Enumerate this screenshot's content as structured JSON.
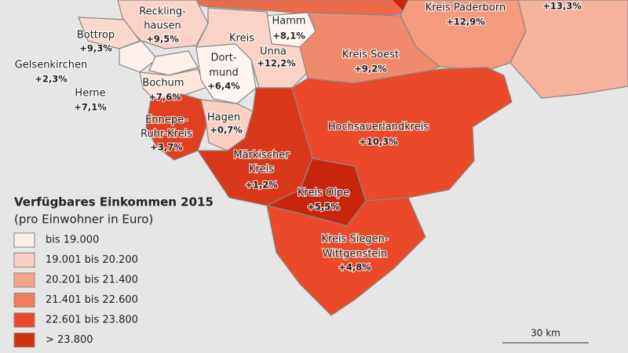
{
  "legend": {
    "title": "Verfügbares Einkommen 2015",
    "subtitle": "(pro Einwohner in Euro)",
    "classes": [
      {
        "label": "bis 19.000",
        "color": "#fdeeea"
      },
      {
        "label": "19.001 bis 20.200",
        "color": "#fbcfc2"
      },
      {
        "label": "20.201 bis 21.400",
        "color": "#f6a58c"
      },
      {
        "label": "21.401 bis 22.600",
        "color": "#f07c5e"
      },
      {
        "label": "22.601 bis 23.800",
        "color": "#ea4a2a"
      },
      {
        "label": "> 23.800",
        "color": "#d1300f"
      }
    ]
  },
  "regions": [
    {
      "lines": [
        "Kreis Paderborn"
      ],
      "change": "+12,9%",
      "color": "#f49a7e"
    },
    {
      "lines": [],
      "change": "+13,3%",
      "color": "#f7b29c"
    },
    {
      "lines": [
        "Reckling-",
        "hausen"
      ],
      "change": "+9,5%",
      "color": "#fbd3c6"
    },
    {
      "lines": [
        "Bottrop"
      ],
      "change": "+9,3%",
      "color": "#fbd8cc"
    },
    {
      "lines": [
        "Gelsenkirchen"
      ],
      "change": "+2,3%",
      "color": "#fef2ee"
    },
    {
      "lines": [
        "Herne"
      ],
      "change": "+7,1%",
      "color": "#fdefea"
    },
    {
      "lines": [
        "Bochum"
      ],
      "change": "+7,6%",
      "color": "#fde6de"
    },
    {
      "lines": [
        "Dort-",
        "mund"
      ],
      "change": "+6,4%",
      "color": "#fef4f0"
    },
    {
      "lines": [
        "Hamm"
      ],
      "change": "+8,1%",
      "color": "#fef4f0"
    },
    {
      "lines": [
        "Kreis",
        "Unna"
      ],
      "change": "+12,2%",
      "color": "#fbd3c6"
    },
    {
      "lines": [
        "Kreis Soest"
      ],
      "change": "+9,2%",
      "color": "#f08a6c"
    },
    {
      "lines": [
        "Ennepe-",
        "Ruhr-Kreis"
      ],
      "change": "+3,7%",
      "color": "#e0401f"
    },
    {
      "lines": [
        "Hagen"
      ],
      "change": "+0,7%",
      "color": "#fbcfc2"
    },
    {
      "lines": [
        "Hochsauerlandkreis"
      ],
      "change": "+10,3%",
      "color": "#ea4a2a"
    },
    {
      "lines": [
        "Märkischer",
        "Kreis"
      ],
      "change": "+1,2%",
      "color": "#d9381a"
    },
    {
      "lines": [
        "Kreis Olpe"
      ],
      "change": "+5,5%",
      "color": "#c8260c"
    },
    {
      "lines": [
        "Kreis Siegen-",
        "Wittgenstein"
      ],
      "change": "+4,8%",
      "color": "#ea4a2a"
    }
  ],
  "scale_bar": {
    "label": "30 km"
  }
}
